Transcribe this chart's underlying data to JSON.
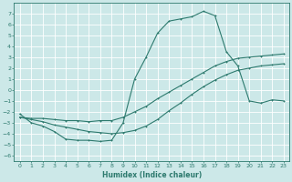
{
  "xlabel": "Humidex (Indice chaleur)",
  "bg_color": "#cce8e8",
  "grid_color": "#ffffff",
  "line_color": "#2d7a6e",
  "xlim": [
    -0.5,
    23.5
  ],
  "ylim": [
    -6.5,
    8.0
  ],
  "xticks": [
    0,
    1,
    2,
    3,
    4,
    5,
    6,
    7,
    8,
    9,
    10,
    11,
    12,
    13,
    14,
    15,
    16,
    17,
    18,
    19,
    20,
    21,
    22,
    23
  ],
  "yticks": [
    -6,
    -5,
    -4,
    -3,
    -2,
    -1,
    0,
    1,
    2,
    3,
    4,
    5,
    6,
    7
  ],
  "line1_x": [
    0,
    1,
    2,
    3,
    4,
    5,
    6,
    7,
    8,
    9,
    10,
    11,
    12,
    13,
    14,
    15,
    16,
    17,
    18,
    19,
    20,
    21,
    22,
    23
  ],
  "line1_y": [
    -2.2,
    -3.0,
    -3.3,
    -3.8,
    -4.5,
    -4.6,
    -4.6,
    -4.7,
    -4.6,
    -3.0,
    1.0,
    3.0,
    5.2,
    6.3,
    6.5,
    6.7,
    7.2,
    6.8,
    3.5,
    2.2,
    -1.0,
    -1.2,
    -0.9,
    -1.0
  ],
  "line2_x": [
    0,
    1,
    2,
    3,
    4,
    5,
    6,
    7,
    8,
    9,
    10,
    11,
    12,
    13,
    14,
    15,
    16,
    17,
    18,
    19,
    20,
    21,
    22,
    23
  ],
  "line2_y": [
    -2.5,
    -2.6,
    -2.6,
    -2.7,
    -2.8,
    -2.8,
    -2.9,
    -2.8,
    -2.8,
    -2.5,
    -2.0,
    -1.5,
    -0.8,
    -0.2,
    0.4,
    1.0,
    1.6,
    2.2,
    2.6,
    2.9,
    3.0,
    3.1,
    3.2,
    3.3
  ],
  "line3_x": [
    0,
    1,
    2,
    3,
    4,
    5,
    6,
    7,
    8,
    9,
    10,
    11,
    12,
    13,
    14,
    15,
    16,
    17,
    18,
    19,
    20,
    21,
    22,
    23
  ],
  "line3_y": [
    -2.5,
    -2.7,
    -2.9,
    -3.2,
    -3.4,
    -3.6,
    -3.8,
    -3.9,
    -4.0,
    -3.9,
    -3.7,
    -3.3,
    -2.7,
    -1.9,
    -1.2,
    -0.4,
    0.3,
    0.9,
    1.4,
    1.8,
    2.0,
    2.2,
    2.3,
    2.4
  ],
  "xlabel_fontsize": 5.5,
  "tick_fontsize": 4.5,
  "linewidth": 0.8,
  "markersize": 2.0
}
